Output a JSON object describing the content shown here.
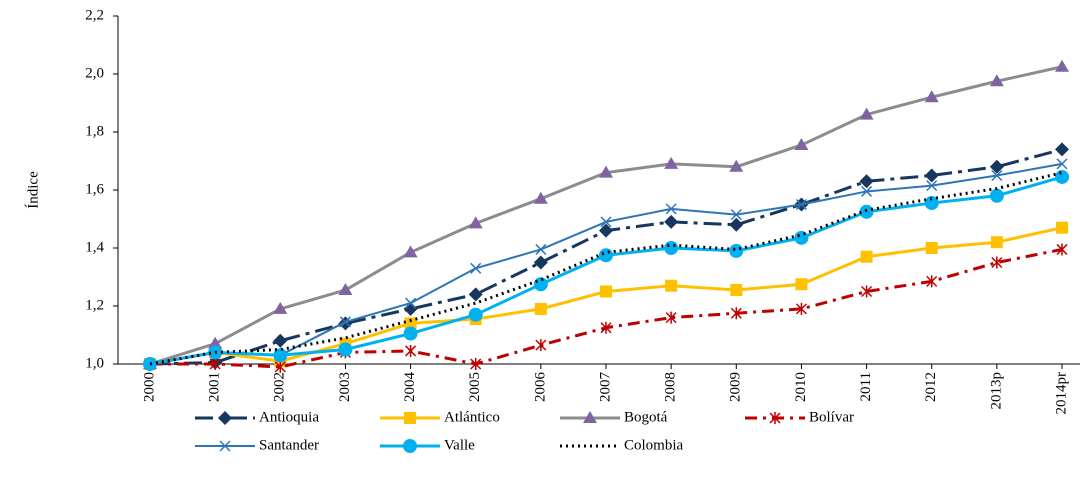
{
  "chart_data": {
    "type": "line",
    "y_label": "Índice",
    "categories": [
      "2000",
      "2001",
      "2002",
      "2003",
      "2004",
      "2005",
      "2006",
      "2007",
      "2008",
      "2009",
      "2010",
      "2011",
      "2012",
      "2013p",
      "2014pr"
    ],
    "ylim": [
      1.0,
      2.2
    ],
    "yticks": [
      {
        "value": 1.0,
        "label": "1,0"
      },
      {
        "value": 1.2,
        "label": "1,2"
      },
      {
        "value": 1.4,
        "label": "1,4"
      },
      {
        "value": 1.6,
        "label": "1,6"
      },
      {
        "value": 1.8,
        "label": "1,8"
      },
      {
        "value": 2.0,
        "label": "2,0"
      },
      {
        "value": 2.2,
        "label": "2,2"
      }
    ],
    "grid": false,
    "legend": "bottom",
    "series": [
      {
        "name": "Antioquia",
        "color": "#17375e",
        "marker": "diamond",
        "marker_color": "#17375e",
        "dash": "18 6 4 6",
        "width": 3,
        "values": [
          1.0,
          1.005,
          1.08,
          1.14,
          1.19,
          1.24,
          1.35,
          1.46,
          1.49,
          1.48,
          1.55,
          1.63,
          1.65,
          1.68,
          1.74
        ]
      },
      {
        "name": "Atlántico",
        "color": "#ffc000",
        "marker": "square",
        "marker_color": "#ffc000",
        "dash": "none",
        "width": 3,
        "values": [
          1.0,
          1.04,
          1.01,
          1.07,
          1.14,
          1.155,
          1.19,
          1.25,
          1.27,
          1.255,
          1.275,
          1.37,
          1.4,
          1.42,
          1.47
        ]
      },
      {
        "name": "Bogotá",
        "color": "#8c8c8c",
        "marker": "triangle",
        "marker_color": "#8064a2",
        "dash": "none",
        "width": 3,
        "values": [
          1.0,
          1.07,
          1.19,
          1.255,
          1.385,
          1.485,
          1.57,
          1.66,
          1.69,
          1.68,
          1.755,
          1.86,
          1.92,
          1.975,
          2.025
        ]
      },
      {
        "name": "Bolívar",
        "color": "#c00000",
        "marker": "asterisk",
        "marker_color": "#c00000",
        "dash": "12 6 3 6",
        "width": 3,
        "values": [
          1.0,
          1.0,
          0.99,
          1.04,
          1.045,
          1.0,
          1.065,
          1.125,
          1.16,
          1.175,
          1.19,
          1.25,
          1.285,
          1.35,
          1.395
        ]
      },
      {
        "name": "Santander",
        "color": "#2e75b6",
        "marker": "x",
        "marker_color": "#2e75b6",
        "dash": "none",
        "width": 2,
        "values": [
          1.0,
          1.04,
          1.03,
          1.145,
          1.21,
          1.33,
          1.395,
          1.49,
          1.535,
          1.515,
          1.55,
          1.595,
          1.615,
          1.65,
          1.69
        ]
      },
      {
        "name": "Valle",
        "color": "#00b0f0",
        "marker": "circle",
        "marker_color": "#00b0f0",
        "dash": "none",
        "width": 3,
        "values": [
          1.0,
          1.04,
          1.03,
          1.05,
          1.105,
          1.17,
          1.275,
          1.375,
          1.4,
          1.39,
          1.435,
          1.525,
          1.555,
          1.58,
          1.645
        ]
      },
      {
        "name": "Colombia",
        "color": "#000000",
        "marker": "none",
        "marker_color": "#000000",
        "dash": "2 4",
        "width": 3,
        "values": [
          1.0,
          1.04,
          1.05,
          1.09,
          1.15,
          1.21,
          1.29,
          1.385,
          1.41,
          1.395,
          1.445,
          1.53,
          1.57,
          1.605,
          1.66
        ]
      }
    ]
  }
}
